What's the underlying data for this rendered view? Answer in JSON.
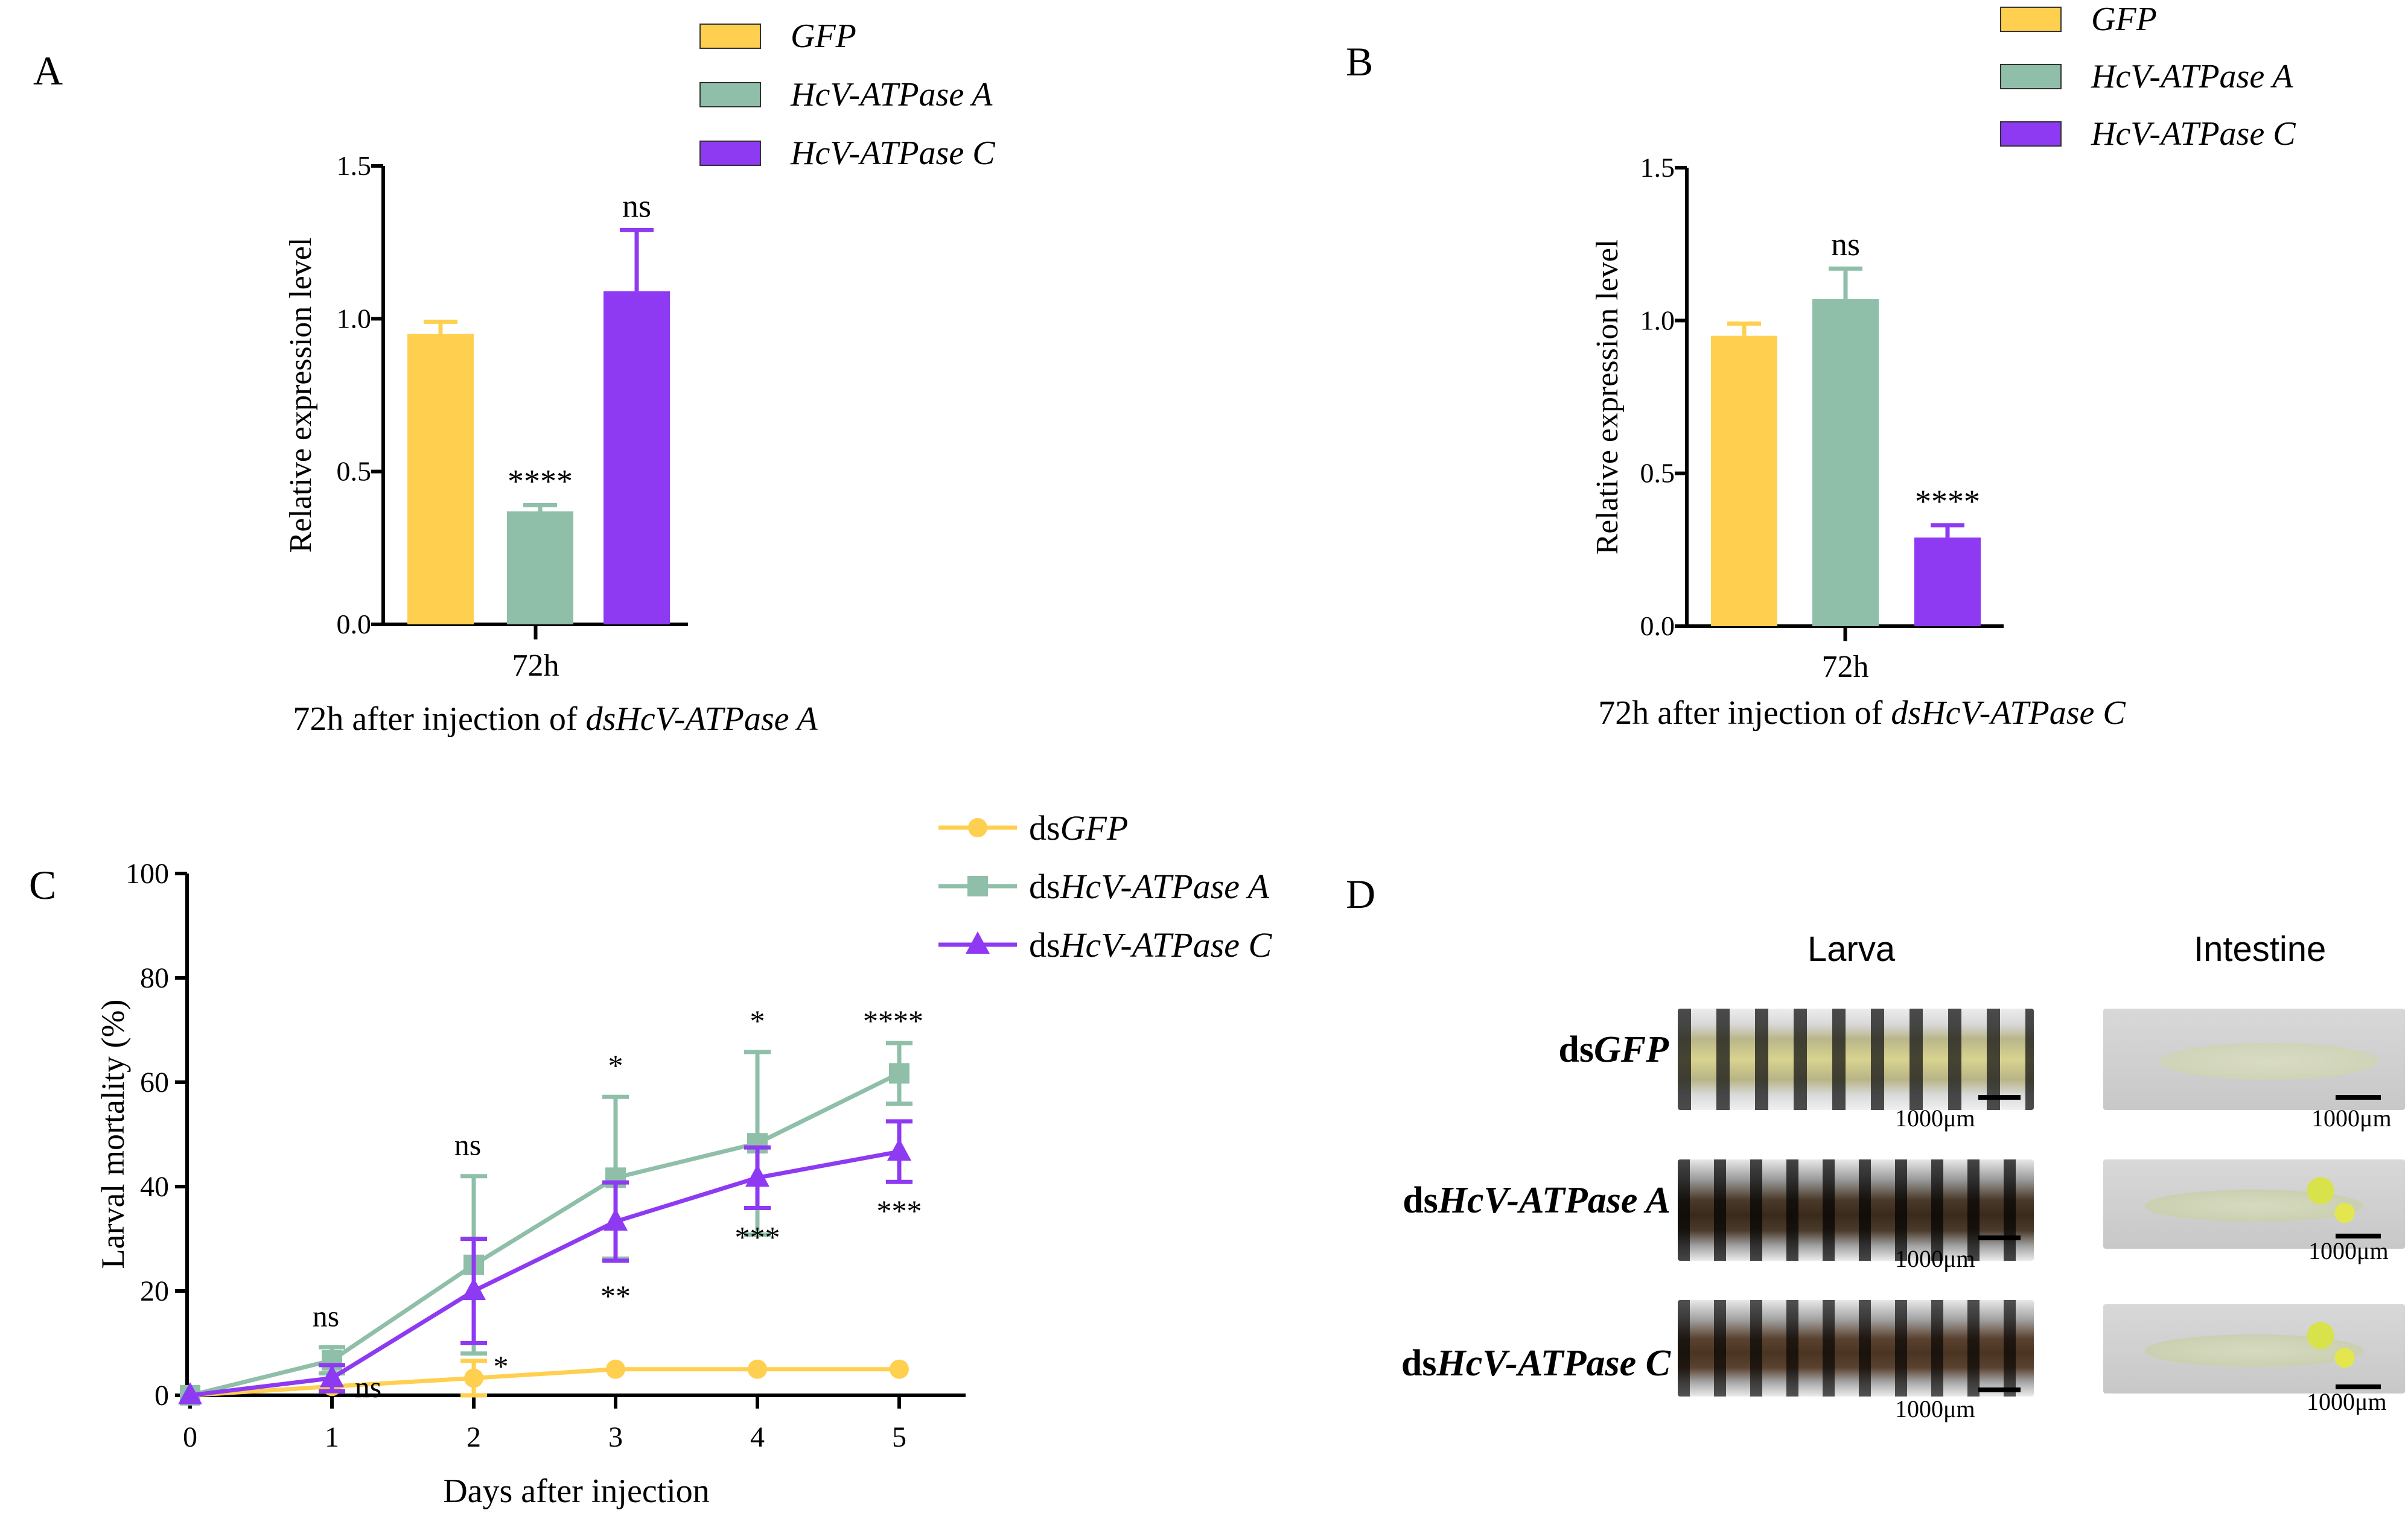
{
  "colors": {
    "gfp": "#FFD04F",
    "atpA": "#8FBFA8",
    "atpC": "#8E3AF2",
    "axis": "#000000"
  },
  "panels": {
    "A": "A",
    "B": "B",
    "C": "C",
    "D": "D"
  },
  "chart_data": [
    {
      "id": "A",
      "type": "bar",
      "categories": [
        "72h"
      ],
      "series": [
        {
          "name": "GFP",
          "values": [
            0.95
          ],
          "error": [
            0.04
          ],
          "sig": ""
        },
        {
          "name": "HcV-ATPase A",
          "values": [
            0.37
          ],
          "error": [
            0.02
          ],
          "sig": "****"
        },
        {
          "name": "HcV-ATPase C",
          "values": [
            1.09
          ],
          "error": [
            0.2
          ],
          "sig": "ns"
        }
      ],
      "xlabel_prefix": "72h after injection of ",
      "xlabel_italic": "dsHcV-ATPase A",
      "ylabel": "Relative expression level",
      "ylim": [
        0,
        1.5
      ],
      "yticks": [
        "0.0",
        "0.5",
        "1.0",
        "1.5"
      ],
      "legend": [
        "GFP",
        "HcV-ATPase A",
        "HcV-ATPase C"
      ]
    },
    {
      "id": "B",
      "type": "bar",
      "categories": [
        "72h"
      ],
      "series": [
        {
          "name": "GFP",
          "values": [
            0.95
          ],
          "error": [
            0.04
          ],
          "sig": ""
        },
        {
          "name": "HcV-ATPase A",
          "values": [
            1.07
          ],
          "error": [
            0.1
          ],
          "sig": "ns"
        },
        {
          "name": "HcV-ATPase C",
          "values": [
            0.29
          ],
          "error": [
            0.04
          ],
          "sig": "****"
        }
      ],
      "xlabel_prefix": "72h after injection of ",
      "xlabel_italic": "dsHcV-ATPase C",
      "ylabel": "Relative expression level",
      "ylim": [
        0,
        1.5
      ],
      "yticks": [
        "0.0",
        "0.5",
        "1.0",
        "1.5"
      ],
      "legend": [
        "GFP",
        "HcV-ATPase A",
        "HcV-ATPase C"
      ]
    },
    {
      "id": "C",
      "type": "line",
      "x": [
        0,
        1,
        2,
        3,
        4,
        5
      ],
      "xticks": [
        "0",
        "1",
        "2",
        "3",
        "4",
        "5"
      ],
      "series": [
        {
          "name_prefix": "ds",
          "name_italic": "GFP",
          "values": [
            0,
            1.7,
            3.3,
            5,
            5,
            5
          ],
          "error": [
            0,
            0,
            3.3,
            0,
            0,
            0
          ],
          "marker": "circle",
          "sig": [
            "",
            "",
            "",
            "",
            "",
            ""
          ]
        },
        {
          "name_prefix": "ds",
          "name_italic": "HcV-ATPase A",
          "values": [
            0,
            6.7,
            25,
            41.7,
            48.3,
            61.7
          ],
          "error": [
            0,
            2.5,
            17,
            15.5,
            17.5,
            5.8
          ],
          "marker": "square",
          "sig": [
            "",
            "ns",
            "ns",
            "*",
            "*",
            "****"
          ]
        },
        {
          "name_prefix": "ds",
          "name_italic": "HcV-ATPase C",
          "values": [
            0,
            3.3,
            20,
            33.3,
            41.7,
            46.7
          ],
          "error": [
            0,
            2.5,
            10,
            7.5,
            5.8,
            5.8
          ],
          "marker": "triangle",
          "sig": [
            "",
            "ns",
            "*",
            "**",
            "***",
            "***"
          ]
        }
      ],
      "xlabel": "Days after injection",
      "ylabel": "Larval mortality (%)",
      "ylim": [
        0,
        100
      ],
      "yticks": [
        "0",
        "20",
        "40",
        "60",
        "80",
        "100"
      ]
    }
  ],
  "panel_d": {
    "col_headers": [
      "Larva",
      "Intestine"
    ],
    "rows": [
      {
        "prefix": "ds",
        "italic": "GFP"
      },
      {
        "prefix": "ds",
        "italic": "HcV-ATPase A"
      },
      {
        "prefix": "ds",
        "italic": "HcV-ATPase C"
      }
    ],
    "scale_label": "1000μm"
  }
}
